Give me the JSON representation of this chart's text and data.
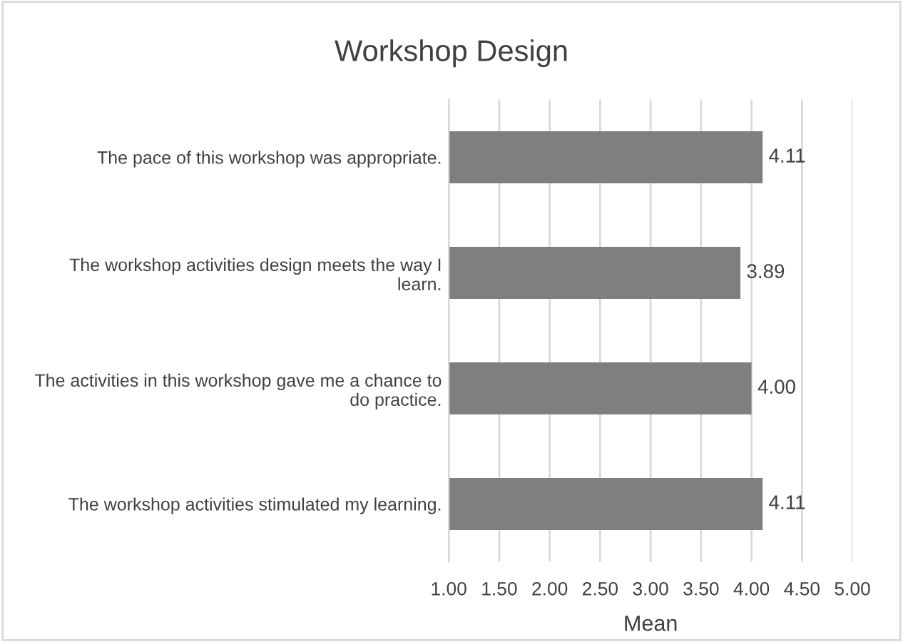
{
  "chart_data": {
    "type": "bar",
    "orientation": "horizontal",
    "title": "Workshop Design",
    "xlabel": "Mean",
    "categories": [
      "The pace of this workshop was appropriate.",
      "The workshop activities design meets the way I\nlearn.",
      "The activities in this workshop gave me a chance to\ndo practice.",
      "The workshop activities stimulated my learning."
    ],
    "values": [
      4.11,
      3.89,
      4.0,
      4.11
    ],
    "value_labels": [
      "4.11",
      "3.89",
      "4.00",
      "4.11"
    ],
    "color": "#7f7f7f",
    "xlim": [
      1,
      5
    ],
    "xticks": [
      {
        "value": 1,
        "label": "1.00"
      },
      {
        "value": 1.5,
        "label": "1.50"
      },
      {
        "value": 2,
        "label": "2.00"
      },
      {
        "value": 2.5,
        "label": "2.50"
      },
      {
        "value": 3,
        "label": "3.00"
      },
      {
        "value": 3.5,
        "label": "3.50"
      },
      {
        "value": 4,
        "label": "4.00"
      },
      {
        "value": 4.5,
        "label": "4.50"
      },
      {
        "value": 5,
        "label": "5.00"
      }
    ],
    "grid": "x",
    "legend": false
  }
}
